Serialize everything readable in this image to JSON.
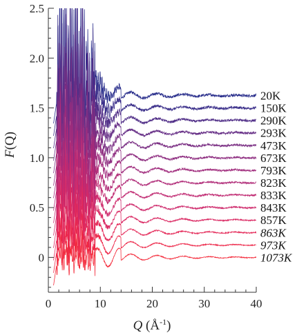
{
  "chart_data": {
    "type": "line",
    "title": "",
    "xlabel": "Q (Å-1)",
    "xlabel_parts": {
      "var": "Q",
      "unit_open": " (Å",
      "sup": "-1",
      "unit_close": ")"
    },
    "ylabel": "F(Q)",
    "ylabel_parts": {
      "var": "F",
      "arg": "(Q)"
    },
    "xlim": [
      0,
      40
    ],
    "ylim": [
      -0.35,
      2.5
    ],
    "x_ticks": [
      0,
      10,
      20,
      30,
      40
    ],
    "x_tick_labels": [
      "0",
      "10",
      "20",
      "30",
      "40"
    ],
    "y_ticks": [
      0,
      0.5,
      1.0,
      1.5,
      2.0,
      2.5
    ],
    "y_tick_labels": [
      "0",
      "0.5",
      "1.0",
      "1.5",
      "2.0",
      "2.5"
    ],
    "grid": false,
    "legend": "right, labels at curve ends",
    "series": [
      {
        "name": "20K",
        "offset": 1.625,
        "color": "#2a2f8c",
        "italic": false
      },
      {
        "name": "150K",
        "offset": 1.5,
        "color": "#3b2f8a",
        "italic": false
      },
      {
        "name": "290K",
        "offset": 1.375,
        "color": "#512f88",
        "italic": false
      },
      {
        "name": "293K",
        "offset": 1.25,
        "color": "#662e86",
        "italic": false
      },
      {
        "name": "473K",
        "offset": 1.125,
        "color": "#7a2e83",
        "italic": false
      },
      {
        "name": "673K",
        "offset": 1.0,
        "color": "#8e2d80",
        "italic": false
      },
      {
        "name": "793K",
        "offset": 0.875,
        "color": "#a02c7d",
        "italic": false
      },
      {
        "name": "823K",
        "offset": 0.75,
        "color": "#b02b78",
        "italic": false
      },
      {
        "name": "833K",
        "offset": 0.625,
        "color": "#c02a72",
        "italic": false
      },
      {
        "name": "843K",
        "offset": 0.5,
        "color": "#ce296b",
        "italic": false
      },
      {
        "name": "857K",
        "offset": 0.375,
        "color": "#da2862",
        "italic": false
      },
      {
        "name": "863K",
        "offset": 0.25,
        "color": "#e42757",
        "italic": true
      },
      {
        "name": "973K",
        "offset": 0.125,
        "color": "#ed2749",
        "italic": true
      },
      {
        "name": "1073K",
        "offset": 0.0,
        "color": "#f42a3a",
        "italic": true
      }
    ]
  }
}
